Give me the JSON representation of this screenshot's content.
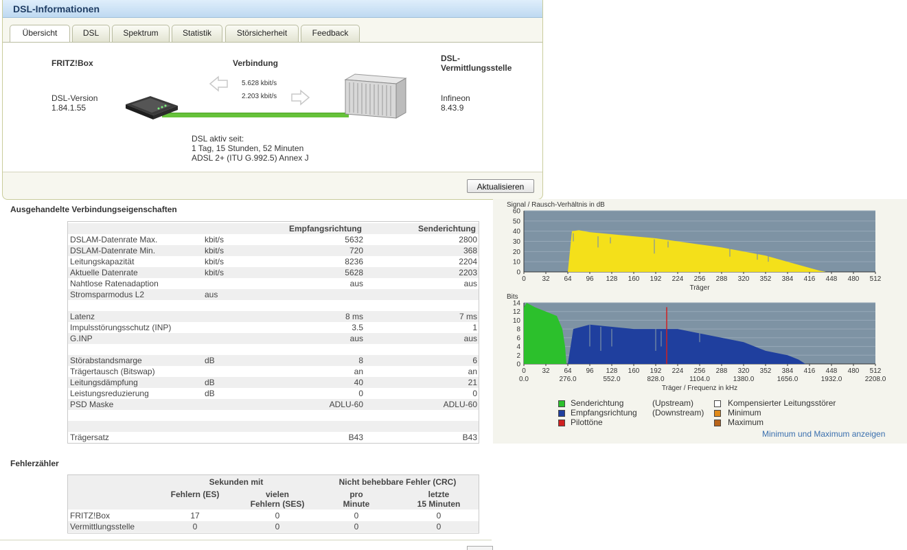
{
  "panel": {
    "title": "DSL-Informationen",
    "tabs": [
      "Übersicht",
      "DSL",
      "Spektrum",
      "Statistik",
      "Störsicherheit",
      "Feedback"
    ],
    "active_tab": "Übersicht"
  },
  "overview": {
    "fritzbox_label": "FRITZ!Box",
    "verbindung_label": "Verbindung",
    "dslam_label_1": "DSL-",
    "dslam_label_2": "Vermittlungsstelle",
    "dsl_version_label": "DSL-Version",
    "dsl_version": "1.84.1.55",
    "rate_down": "5.628 kbit/s",
    "rate_up": "2.203 kbit/s",
    "dslam_vendor": "Infineon",
    "dslam_version": "8.43.9",
    "active_since_label": "DSL aktiv seit:",
    "active_since": "1 Tag, 15 Stunden, 52 Minuten",
    "mode": "ADSL 2+ (ITU G.992.5) Annex J",
    "refresh_button": "Aktualisieren"
  },
  "props": {
    "heading": "Ausgehandelte Verbindungseigenschaften",
    "col_down": "Empfangsrichtung",
    "col_up": "Senderichtung",
    "rows": [
      {
        "name": "DSLAM-Datenrate Max.",
        "unit": "kbit/s",
        "down": "5632",
        "up": "2800"
      },
      {
        "name": "DSLAM-Datenrate Min.",
        "unit": "kbit/s",
        "down": "720",
        "up": "368"
      },
      {
        "name": "Leitungskapazität",
        "unit": "kbit/s",
        "down": "8236",
        "up": "2204"
      },
      {
        "name": "Aktuelle Datenrate",
        "unit": "kbit/s",
        "down": "5628",
        "up": "2203"
      },
      {
        "name": "Nahtlose Ratenadaption",
        "unit": "",
        "down": "aus",
        "up": "aus"
      },
      {
        "name": "Stromsparmodus L2",
        "unit": "aus",
        "down": "",
        "up": ""
      },
      {
        "name": "",
        "unit": "",
        "down": "",
        "up": ""
      },
      {
        "name": "Latenz",
        "unit": "",
        "down": "8 ms",
        "up": "7 ms"
      },
      {
        "name": "Impulsstörungsschutz (INP)",
        "unit": "",
        "down": "3.5",
        "up": "1"
      },
      {
        "name": "G.INP",
        "unit": "",
        "down": "aus",
        "up": "aus"
      },
      {
        "name": "",
        "unit": "",
        "down": "",
        "up": ""
      },
      {
        "name": "Störabstandsmarge",
        "unit": "dB",
        "down": "8",
        "up": "6"
      },
      {
        "name": "Trägertausch (Bitswap)",
        "unit": "",
        "down": "an",
        "up": "an"
      },
      {
        "name": "Leitungsdämpfung",
        "unit": "dB",
        "down": "40",
        "up": "21"
      },
      {
        "name": "Leistungsreduzierung",
        "unit": "dB",
        "down": "0",
        "up": "0"
      },
      {
        "name": "PSD Maske",
        "unit": "",
        "down": "ADLU-60",
        "up": "ADLU-60"
      },
      {
        "name": "",
        "unit": "",
        "down": "",
        "up": ""
      },
      {
        "name": "",
        "unit": "",
        "down": "",
        "up": ""
      },
      {
        "name": "Trägersatz",
        "unit": "",
        "down": "B43",
        "up": "B43"
      }
    ]
  },
  "errors": {
    "heading": "Fehlerzähler",
    "group1": "Sekunden mit",
    "group2": "Nicht behebbare Fehler (CRC)",
    "c1": "Fehlern (ES)",
    "c2a": "vielen",
    "c2b": "Fehlern (SES)",
    "c3a": "pro",
    "c3b": "Minute",
    "c4a": "letzte",
    "c4b": "15 Minuten",
    "rows": [
      {
        "name": "FRITZ!Box",
        "es": "17",
        "ses": "0",
        "pm": "0",
        "l15": "0"
      },
      {
        "name": "Vermittlungsstelle",
        "es": "0",
        "ses": "0",
        "pm": "0",
        "l15": "0"
      }
    ]
  },
  "charts": {
    "snr_title": "Signal / Rausch-Verhältnis in dB",
    "snr_yticks": [
      "60",
      "50",
      "40",
      "30",
      "20",
      "10",
      "0"
    ],
    "x_ticks": [
      "0",
      "32",
      "64",
      "96",
      "128",
      "160",
      "192",
      "224",
      "256",
      "288",
      "320",
      "352",
      "384",
      "416",
      "448",
      "480",
      "512"
    ],
    "snr_xlabel": "Träger",
    "bits_title": "Bits",
    "bits_yticks": [
      "14",
      "12",
      "10",
      "8",
      "6",
      "4",
      "2",
      "0"
    ],
    "freq_ticks": [
      "0.0",
      "276.0",
      "552.0",
      "828.0",
      "1104.0",
      "1380.0",
      "1656.0",
      "1932.0",
      "2208.0"
    ],
    "bits_xlabel": "Träger / Frequenz in kHz",
    "colors": {
      "plot_bg": "#7e93a4",
      "snr": "#f4e01a",
      "up": "#2cc02c",
      "down": "#1f3f9e",
      "pilot": "#d02020"
    }
  },
  "chart_data": [
    {
      "type": "area",
      "title": "Signal / Rausch-Verhältnis in dB",
      "xlabel": "Träger",
      "ylim": [
        0,
        60
      ],
      "xlim": [
        0,
        512
      ],
      "x": [
        64,
        70,
        80,
        96,
        128,
        160,
        192,
        224,
        256,
        288,
        320,
        352,
        384,
        416,
        432,
        440
      ],
      "values": [
        0,
        40,
        41,
        39,
        37,
        35,
        33,
        30,
        27,
        24,
        20,
        16,
        10,
        4,
        1,
        0
      ]
    },
    {
      "type": "area",
      "title": "Bits",
      "xlabel": "Träger / Frequenz in kHz",
      "ylim": [
        0,
        14
      ],
      "xlim": [
        0,
        512
      ],
      "series": [
        {
          "name": "Senderichtung",
          "x": [
            0,
            4,
            16,
            32,
            48,
            56,
            60,
            62
          ],
          "values": [
            13,
            14,
            13,
            12,
            11,
            8,
            4,
            0
          ]
        },
        {
          "name": "Empfangsrichtung",
          "x": [
            64,
            72,
            96,
            160,
            224,
            256,
            288,
            320,
            352,
            384,
            400,
            410
          ],
          "values": [
            0,
            8,
            9,
            8,
            8,
            7,
            6,
            5,
            3,
            2,
            1,
            0
          ]
        },
        {
          "name": "Pilottöne",
          "x": [
            208,
            208
          ],
          "values": [
            0,
            13
          ]
        }
      ]
    }
  ],
  "legend": {
    "up": "Senderichtung",
    "up_en": "(Upstream)",
    "down": "Empfangsrichtung",
    "down_en": "(Downstream)",
    "pilot": "Pilottöne",
    "komp": "Kompensierter Leitungsstörer",
    "min": "Minimum",
    "max": "Maximum",
    "colors": {
      "up": "#2cc02c",
      "down": "#1f3f9e",
      "pilot": "#d02020",
      "komp": "#ffffff",
      "min": "#e08a1a",
      "max": "#e08a1a"
    },
    "link": "Minimum und Maximum anzeigen"
  }
}
